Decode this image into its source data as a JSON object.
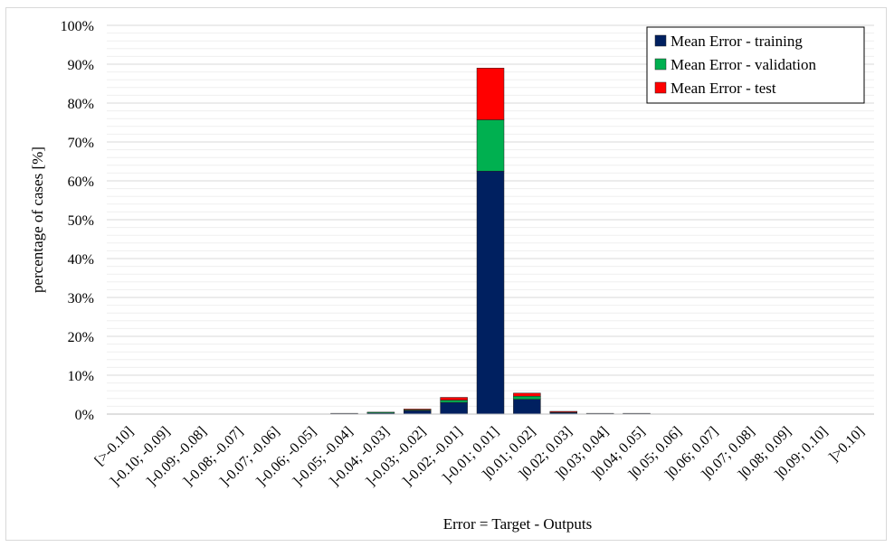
{
  "chart_data": {
    "type": "bar",
    "stacked": true,
    "xlabel": "Error = Target - Outputs",
    "ylabel": "percentage of cases [%]",
    "ylim": [
      0,
      100
    ],
    "yticks": [
      "0%",
      "10%",
      "20%",
      "30%",
      "40%",
      "50%",
      "60%",
      "70%",
      "80%",
      "90%",
      "100%"
    ],
    "categories": [
      "[>-0.10]",
      "]-0.10; -0.09]",
      "]-0.09; -0.08]",
      "]-0.08; -0.07]",
      "]-0.07; -0.06]",
      "]-0.06; -0.05]",
      "]-0.05; -0.04]",
      "]-0.04; -0.03]",
      "]-0.03; -0.02]",
      "]-0.02; -0.01]",
      "]-0.01; 0.01]",
      "]0.01; 0.02]",
      "]0.02; 0.03]",
      "]0.03; 0.04]",
      "]0.04; 0.05]",
      "]0.05; 0.06]",
      "]0.06; 0.07]",
      "]0.07; 0.08]",
      "]0.08; 0.09]",
      "]0.09; 0.10]",
      "]>0.10]"
    ],
    "series": [
      {
        "name": "Mean Error -  training",
        "color": "#002060",
        "values": [
          0,
          0,
          0,
          0,
          0,
          0,
          0.2,
          0.4,
          0.9,
          3.0,
          62.5,
          3.8,
          0.5,
          0.2,
          0.2,
          0,
          0,
          0,
          0,
          0,
          0
        ]
      },
      {
        "name": "Mean Error -  validation",
        "color": "#00b050",
        "values": [
          0,
          0,
          0,
          0,
          0,
          0,
          0,
          0.1,
          0.2,
          0.6,
          13.2,
          0.8,
          0.1,
          0,
          0,
          0,
          0,
          0,
          0,
          0,
          0
        ]
      },
      {
        "name": "Mean Error -  test",
        "color": "#ff0000",
        "values": [
          0,
          0,
          0,
          0,
          0,
          0,
          0,
          0,
          0.2,
          0.7,
          13.3,
          0.8,
          0.1,
          0,
          0,
          0,
          0,
          0,
          0,
          0,
          0
        ]
      }
    ],
    "grid": true,
    "legend_position": "top-right"
  }
}
